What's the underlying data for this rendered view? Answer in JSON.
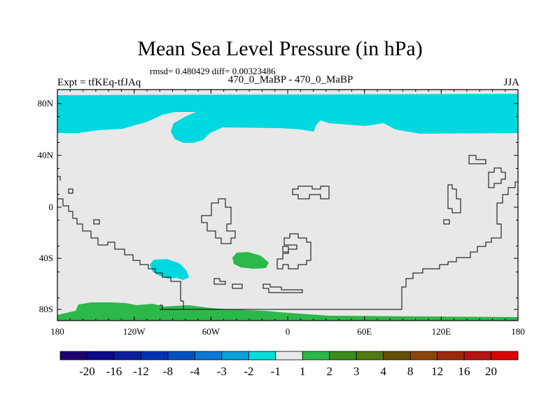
{
  "header": {
    "title": "Mean Sea Level Pressure (in hPa)",
    "stats": "rmsd= 0.480429 diff= 0.00323486",
    "left_label": "Expt = tfKEq-tfJAq",
    "center_label": "470_0_MaBP - 470_0_MaBP",
    "right_label": "JJA"
  },
  "map": {
    "background_color": "#e8e8e8",
    "lat_ticks": [
      "80N",
      "40N",
      "0",
      "40S",
      "80S"
    ],
    "lon_ticks": [
      "180",
      "120W",
      "60W",
      "0",
      "60E",
      "120E",
      "180"
    ],
    "fill_colors": {
      "negative_1_to_2": "#00d8e0",
      "positive_1_to_2": "#2db84a"
    },
    "coastline_color": "#000000"
  },
  "colorbar": {
    "labels": [
      "-20",
      "-16",
      "-12",
      "-8",
      "-4",
      "-3",
      "-2",
      "-1",
      "1",
      "2",
      "3",
      "4",
      "8",
      "12",
      "16",
      "20"
    ],
    "colors": [
      "#1f006e",
      "#0a0a8c",
      "#0a1e9e",
      "#0032b4",
      "#0050c0",
      "#0a78d2",
      "#05a0d8",
      "#00dcdc",
      "#e8e8e8",
      "#2db84a",
      "#3c8c1e",
      "#507814",
      "#645000",
      "#8c460a",
      "#a0280a",
      "#b41414",
      "#dc0000"
    ]
  }
}
